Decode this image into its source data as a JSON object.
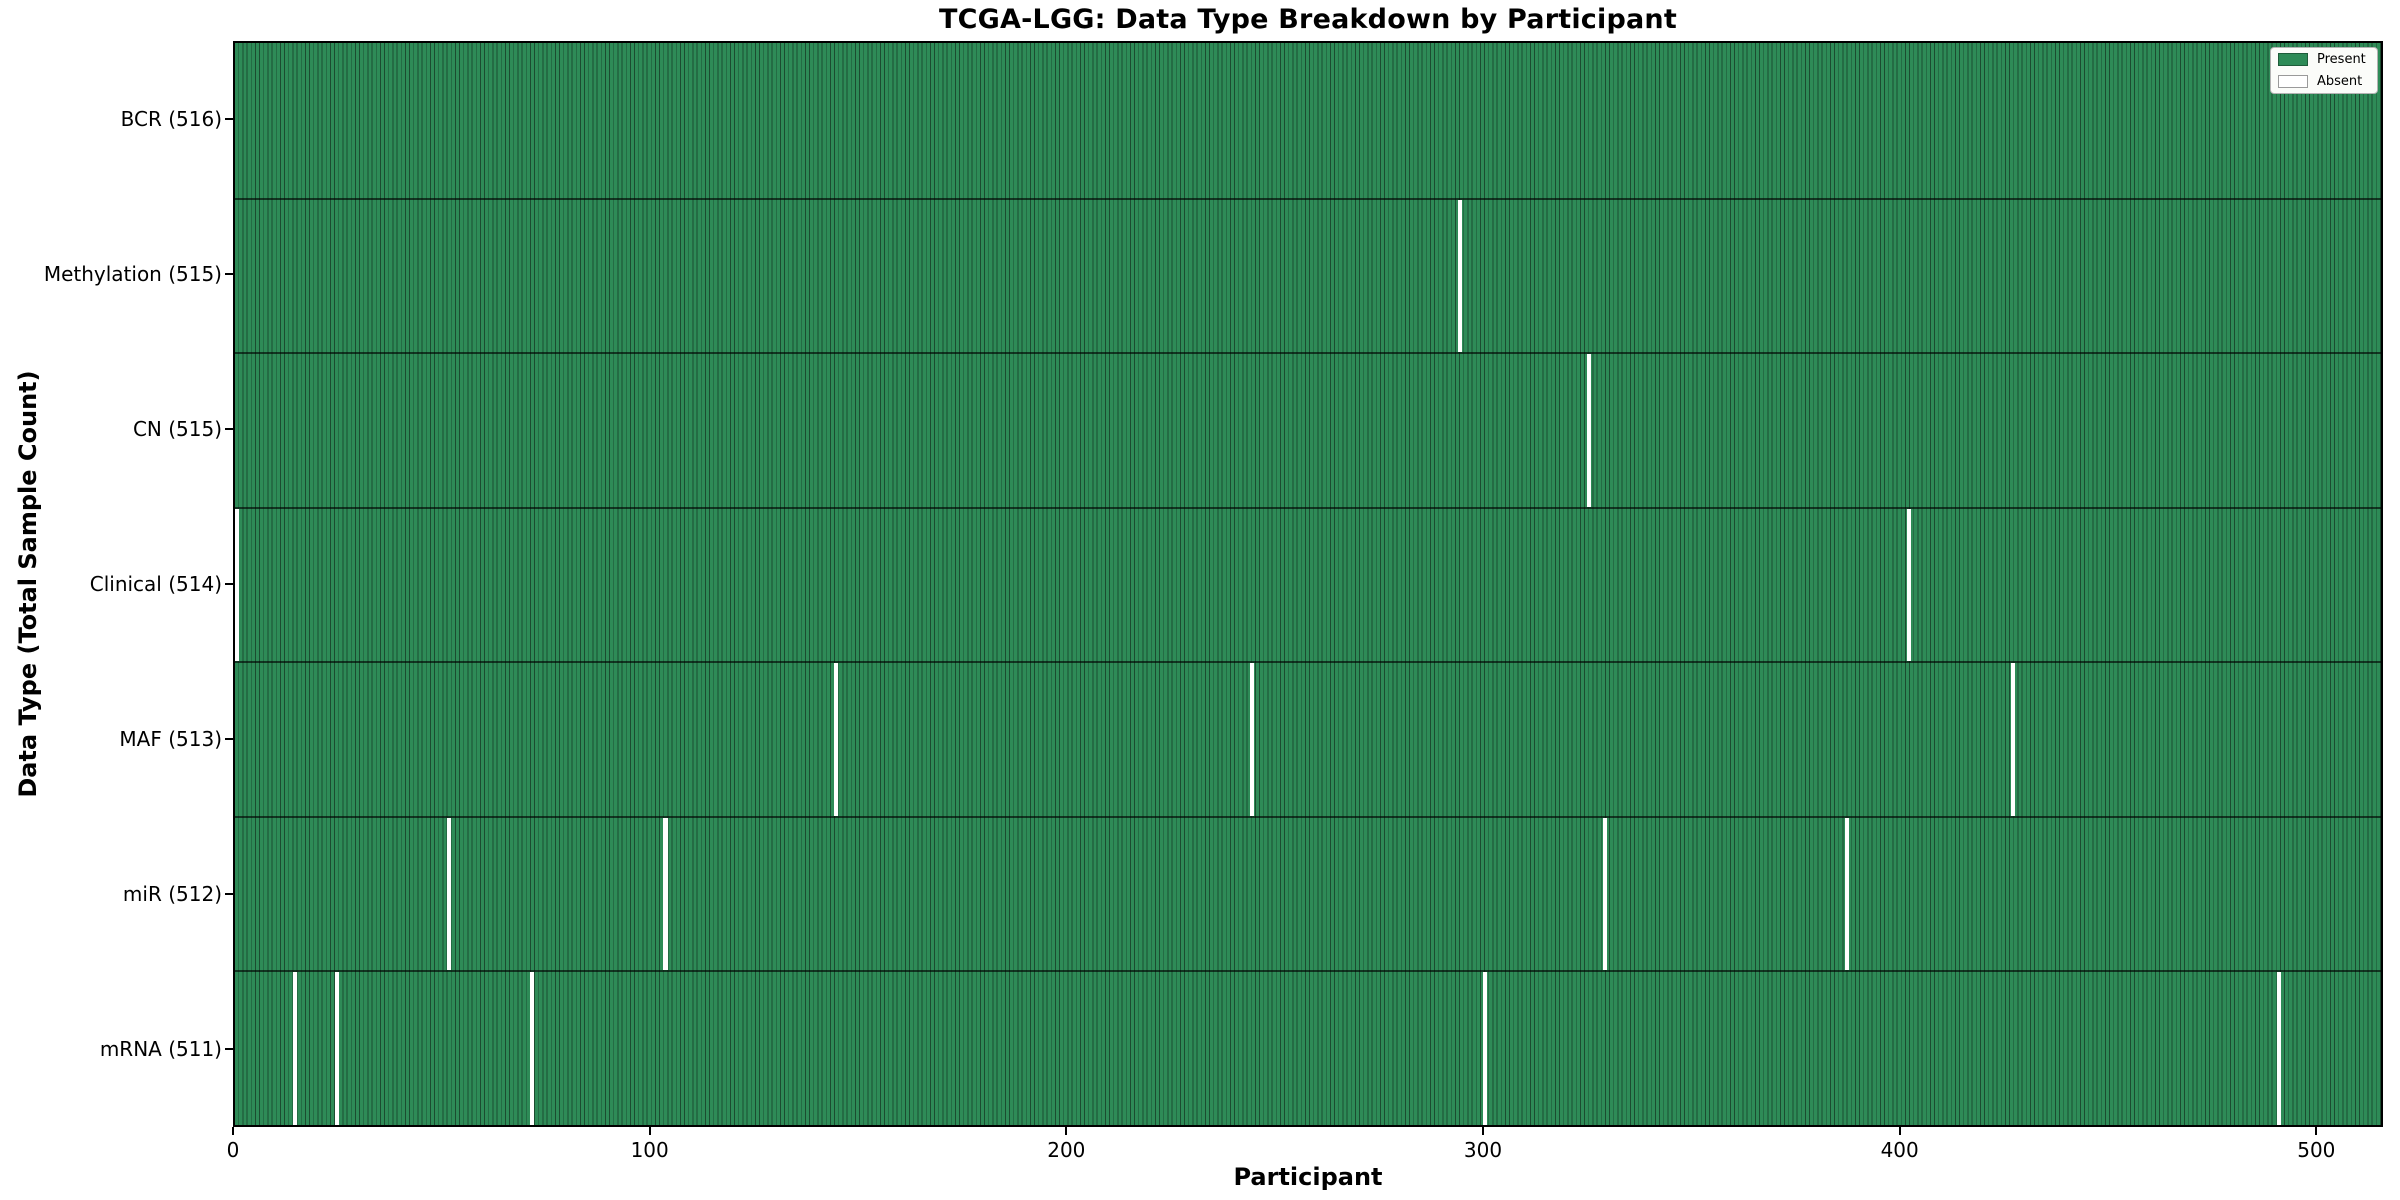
{
  "title": "TCGA-LGG: Data Type Breakdown by Participant",
  "chart_data": {
    "type": "heatmap",
    "title": "TCGA-LGG: Data Type Breakdown by Participant",
    "xlabel": "Participant",
    "ylabel": "Data Type (Total Sample Count)",
    "n_participants": 516,
    "xlim": [
      0,
      516
    ],
    "x_ticks": [
      0,
      100,
      200,
      300,
      400,
      500
    ],
    "grid": false,
    "legend": {
      "position": "upper-right",
      "entries": [
        {
          "label": "Present",
          "color": "#2e8b57"
        },
        {
          "label": "Absent",
          "color": "#ffffff"
        }
      ]
    },
    "rows": [
      {
        "key": "bcr",
        "label": "BCR (516)",
        "data_type": "BCR",
        "total_samples": 516,
        "absent_participants": []
      },
      {
        "key": "methylation",
        "label": "Methylation (515)",
        "data_type": "Methylation",
        "total_samples": 515,
        "absent_participants": [
          294
        ]
      },
      {
        "key": "cn",
        "label": "CN (515)",
        "data_type": "CN",
        "total_samples": 515,
        "absent_participants": [
          325
        ]
      },
      {
        "key": "clinical",
        "label": "Clinical (514)",
        "data_type": "Clinical",
        "total_samples": 514,
        "absent_participants": [
          0,
          402
        ]
      },
      {
        "key": "maf",
        "label": "MAF (513)",
        "data_type": "MAF",
        "total_samples": 513,
        "absent_participants": [
          144,
          244,
          427
        ]
      },
      {
        "key": "mir",
        "label": "miR (512)",
        "data_type": "miR",
        "total_samples": 512,
        "absent_participants": [
          51,
          103,
          329,
          387
        ]
      },
      {
        "key": "mrna",
        "label": "mRNA (511)",
        "data_type": "mRNA",
        "total_samples": 511,
        "absent_participants": [
          14,
          24,
          71,
          300,
          491
        ]
      }
    ],
    "colors": {
      "present": "#2e8b57",
      "absent": "#ffffff",
      "cell_edge": "#1b4c30",
      "spine": "#000000"
    }
  }
}
